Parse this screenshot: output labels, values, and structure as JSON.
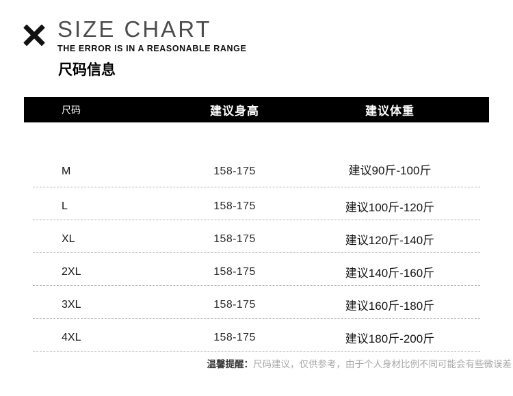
{
  "brand": {
    "icon": "x-mark",
    "title": "SIZE CHART",
    "subtitle": "THE ERROR IS IN A REASONABLE RANGE"
  },
  "section": {
    "title": "尺码信息"
  },
  "table": {
    "headers": {
      "size": "尺码",
      "height": "建议身高",
      "weight": "建议体重"
    },
    "rows": [
      {
        "size": "M",
        "height": "158-175",
        "weight": "建议90斤-100斤"
      },
      {
        "size": "L",
        "height": "158-175",
        "weight": "建议100斤-120斤"
      },
      {
        "size": "XL",
        "height": "158-175",
        "weight": "建议120斤-140斤"
      },
      {
        "size": "2XL",
        "height": "158-175",
        "weight": "建议140斤-160斤"
      },
      {
        "size": "3XL",
        "height": "158-175",
        "weight": "建议160斤-180斤"
      },
      {
        "size": "4XL",
        "height": "158-175",
        "weight": "建议180斤-200斤"
      }
    ]
  },
  "note": {
    "label": "温馨提醒：",
    "text": "尺码建议，仅供参考，由于个人身材比例不同可能会有些微误差"
  },
  "colors": {
    "table_header_bg": "#000000",
    "table_header_text": "#ffffff",
    "body_text": "#141414",
    "divider": "#b3b3b3",
    "note_text": "#a8a8a8"
  }
}
